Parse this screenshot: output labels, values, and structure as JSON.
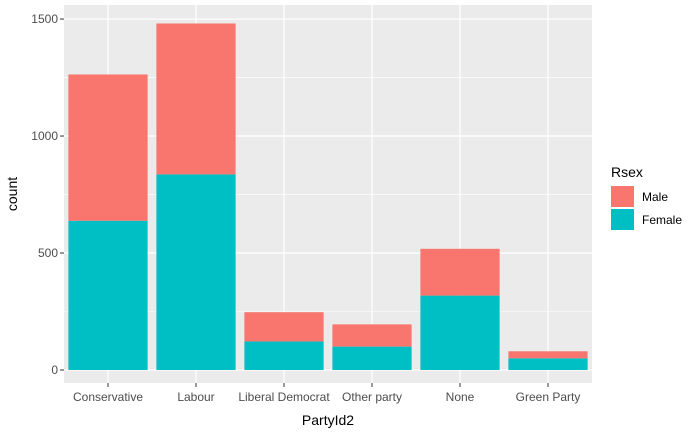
{
  "chart_data": {
    "type": "bar",
    "stacked": true,
    "categories": [
      "Conservative",
      "Labour",
      "Liberal Democrat",
      "Other party",
      "None",
      "Green Party"
    ],
    "series": [
      {
        "name": "Male",
        "values": [
          625,
          645,
          125,
          95,
          200,
          30
        ],
        "color": "#F8766D"
      },
      {
        "name": "Female",
        "values": [
          638,
          836,
          122,
          100,
          318,
          50
        ],
        "color": "#00BFC4"
      }
    ],
    "xlabel": "PartyId2",
    "ylabel": "count",
    "ylim": [
      0,
      1560
    ],
    "yticks": [
      0,
      500,
      1000,
      1500
    ],
    "grid": true,
    "legend": {
      "title": "Rsex",
      "position": "right"
    },
    "colors": {
      "panel": "#EBEBEB",
      "grid_major": "#FFFFFF",
      "tick_text": "#4D4D4D"
    }
  }
}
